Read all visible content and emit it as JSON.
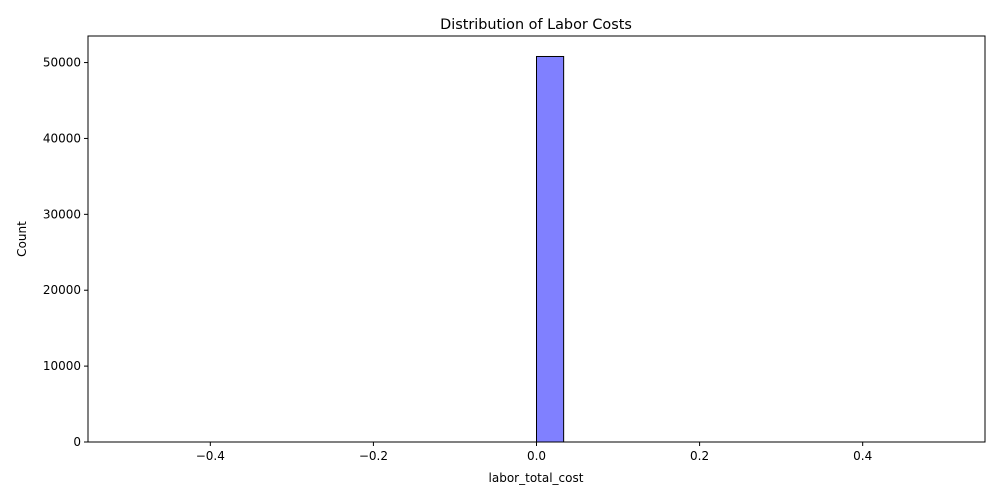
{
  "chart_data": {
    "type": "bar",
    "title": "Distribution of Labor Costs",
    "xlabel": "labor_total_cost",
    "ylabel": "Count",
    "xlim": [
      -0.55,
      0.55
    ],
    "ylim": [
      0,
      53500
    ],
    "x_ticks": [
      -0.4,
      -0.2,
      0.0,
      0.2,
      0.4
    ],
    "x_tick_labels": [
      "−0.4",
      "−0.2",
      "0.0",
      "0.2",
      "0.4"
    ],
    "y_ticks": [
      0,
      10000,
      20000,
      30000,
      40000,
      50000
    ],
    "y_tick_labels": [
      "0",
      "10000",
      "20000",
      "30000",
      "40000",
      "50000"
    ],
    "bin_range": [
      -0.5,
      0.5
    ],
    "bins": 30,
    "bars": [
      {
        "x_start": 0.0,
        "x_end": 0.0333,
        "count": 50800
      }
    ],
    "bar_color": "#8080ff",
    "edge_color": "#000000",
    "grid": false
  }
}
